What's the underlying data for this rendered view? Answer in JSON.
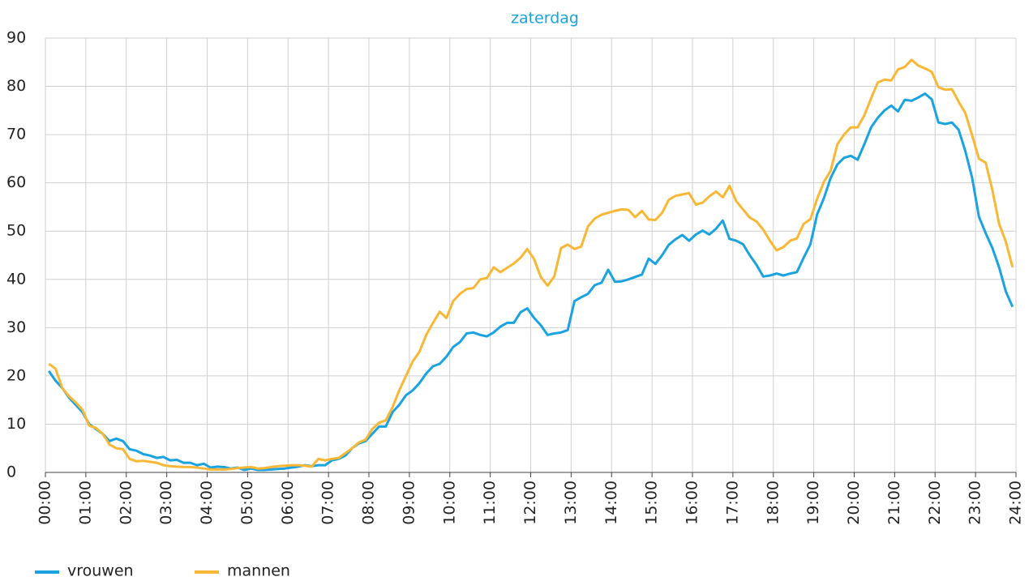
{
  "chart_data": {
    "type": "line",
    "title": "zaterdag",
    "title_color": "#1aa3e0",
    "x": [
      5,
      15,
      25,
      35,
      45,
      55,
      65,
      75,
      85,
      95,
      105,
      115,
      125,
      135,
      145,
      155,
      165,
      175,
      185,
      195,
      205,
      215,
      225,
      235,
      245,
      255,
      265,
      275,
      285,
      295,
      305,
      315,
      325,
      335,
      345,
      355,
      365,
      375,
      385,
      395,
      405,
      415,
      425,
      435,
      445,
      455,
      465,
      475,
      485,
      495,
      505,
      515,
      525,
      535,
      545,
      555,
      565,
      575,
      585,
      595,
      605,
      615,
      625,
      635,
      645,
      655,
      665,
      675,
      685,
      695,
      705,
      715,
      725,
      735,
      745,
      755,
      765,
      775,
      785,
      795,
      805,
      815,
      825,
      835,
      845,
      855,
      865,
      875,
      885,
      895,
      905,
      915,
      925,
      935,
      945,
      955,
      965,
      975,
      985,
      995,
      1005,
      1015,
      1025,
      1035,
      1045,
      1055,
      1065,
      1075,
      1085,
      1095,
      1105,
      1115,
      1125,
      1135,
      1145,
      1155,
      1165,
      1175,
      1185,
      1195,
      1205,
      1215,
      1225,
      1235,
      1245,
      1255,
      1265,
      1275,
      1285,
      1295,
      1305,
      1315,
      1325,
      1335,
      1345,
      1355,
      1365,
      1375,
      1385,
      1395,
      1405,
      1415,
      1425,
      1435
    ],
    "series": [
      {
        "name": "vrouwen",
        "color": "#1aa3e0",
        "values": [
          21,
          19,
          17.5,
          15.5,
          14,
          12.5,
          10,
          9,
          8,
          6.5,
          7,
          6.5,
          4.8,
          4.5,
          3.8,
          3.5,
          3,
          3.2,
          2.5,
          2.6,
          2,
          2,
          1.5,
          1.8,
          1,
          1.2,
          1.1,
          0.8,
          1,
          0.5,
          0.8,
          0.5,
          0.5,
          0.6,
          0.7,
          0.8,
          1,
          1.2,
          1.5,
          1.3,
          1.5,
          1.5,
          2.5,
          2.8,
          3.5,
          5,
          6,
          6.5,
          8,
          9.5,
          9.5,
          12.5,
          14,
          16,
          17,
          18.5,
          20.5,
          22,
          22.5,
          24,
          26,
          27,
          28.8,
          29,
          28.5,
          28.2,
          29,
          30.2,
          31,
          31,
          33.2,
          34,
          32,
          30.5,
          28.5,
          28.8,
          29,
          29.5,
          35.5,
          36.3,
          37,
          38.8,
          39.3,
          42,
          39.5,
          39.6,
          40,
          40.5,
          41,
          44.3,
          43.2,
          45,
          47.2,
          48.3,
          49.2,
          48,
          49.3,
          50.1,
          49.3,
          50.5,
          52.2,
          48.4,
          48,
          47.3,
          45,
          43,
          40.6,
          40.8,
          41.2,
          40.8,
          41.2,
          41.5,
          44.5,
          47.3,
          53.5,
          56.8,
          61,
          63.8,
          65.2,
          65.6,
          64.8,
          68,
          71.5,
          73.5,
          75,
          76,
          74.8,
          77.2,
          77,
          77.7,
          78.5,
          77.3,
          72.5,
          72.2,
          72.5,
          71,
          66.5,
          61,
          53,
          49.6,
          46.5,
          42.5,
          37.5,
          34.3
        ]
      },
      {
        "name": "mannen",
        "color": "#f8b835",
        "values": [
          22.5,
          21.5,
          17.5,
          15.8,
          14.5,
          13,
          9.7,
          9.2,
          8,
          5.8,
          5,
          4.8,
          2.8,
          2.3,
          2.4,
          2.2,
          2,
          1.5,
          1.3,
          1.2,
          1.1,
          1.1,
          1,
          0.8,
          0.6,
          0.6,
          0.6,
          0.7,
          0.9,
          1,
          1.1,
          0.8,
          0.9,
          1.1,
          1.3,
          1.4,
          1.5,
          1.5,
          1.4,
          1.2,
          2.8,
          2.5,
          2.8,
          3,
          4,
          5,
          6.2,
          6.8,
          9,
          10.3,
          10.8,
          13.5,
          17,
          20,
          23,
          25,
          28.5,
          31,
          33.3,
          32,
          35.5,
          37,
          38,
          38.2,
          40,
          40.3,
          42.5,
          41.5,
          42.4,
          43.3,
          44.5,
          46.3,
          44.2,
          40.5,
          38.7,
          40.6,
          46.5,
          47.2,
          46.3,
          46.8,
          51,
          52.6,
          53.4,
          53.8,
          54.2,
          54.5,
          54.4,
          52.9,
          54.2,
          52.4,
          52.3,
          53.8,
          56.5,
          57.3,
          57.6,
          57.9,
          55.5,
          55.9,
          57.2,
          58.2,
          57,
          59.4,
          56.2,
          54.5,
          52.8,
          52,
          50.3,
          48,
          46,
          46.7,
          48,
          48.5,
          51.5,
          52.5,
          56.7,
          60.2,
          62.5,
          68,
          70,
          71.5,
          71.5,
          74,
          77.5,
          80.8,
          81.4,
          81.2,
          83.5,
          84,
          85.5,
          84.3,
          83.7,
          83,
          79.8,
          79.3,
          79.4,
          76.8,
          74.4,
          69.8,
          65,
          64.2,
          58.5,
          51.5,
          47.8,
          42.5
        ]
      }
    ],
    "xlim": [
      0,
      1440
    ],
    "xticks": [
      {
        "value": 0,
        "label": "00:00"
      },
      {
        "value": 60,
        "label": "01:00"
      },
      {
        "value": 120,
        "label": "02:00"
      },
      {
        "value": 180,
        "label": "03:00"
      },
      {
        "value": 240,
        "label": "04:00"
      },
      {
        "value": 300,
        "label": "05:00"
      },
      {
        "value": 360,
        "label": "06:00"
      },
      {
        "value": 420,
        "label": "07:00"
      },
      {
        "value": 480,
        "label": "08:00"
      },
      {
        "value": 540,
        "label": "09:00"
      },
      {
        "value": 600,
        "label": "10:00"
      },
      {
        "value": 660,
        "label": "11:00"
      },
      {
        "value": 720,
        "label": "12:00"
      },
      {
        "value": 780,
        "label": "13:00"
      },
      {
        "value": 840,
        "label": "14:00"
      },
      {
        "value": 900,
        "label": "15:00"
      },
      {
        "value": 960,
        "label": "16:00"
      },
      {
        "value": 1020,
        "label": "17:00"
      },
      {
        "value": 1080,
        "label": "18:00"
      },
      {
        "value": 1140,
        "label": "19:00"
      },
      {
        "value": 1200,
        "label": "20:00"
      },
      {
        "value": 1260,
        "label": "21:00"
      },
      {
        "value": 1320,
        "label": "22:00"
      },
      {
        "value": 1380,
        "label": "23:00"
      },
      {
        "value": 1440,
        "label": "24:00"
      }
    ],
    "ylim": [
      0,
      90
    ],
    "yticks": [
      0,
      10,
      20,
      30,
      40,
      50,
      60,
      70,
      80,
      90
    ],
    "grid": true,
    "legend": "bottom-left"
  }
}
